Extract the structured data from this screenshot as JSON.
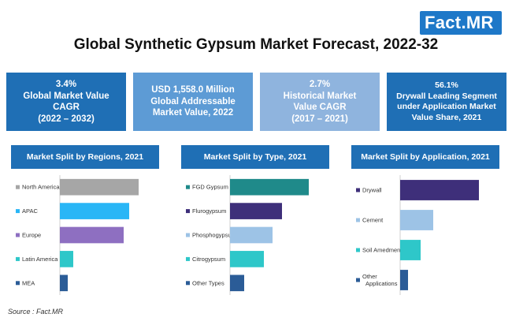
{
  "logo": {
    "text": "Fact",
    "dot": ".",
    "suffix": "MR"
  },
  "title": "Global Synthetic Gypsum Market Forecast, 2022-32",
  "kpis": [
    {
      "lines": [
        "3.4%",
        "Global Market Value",
        "CAGR",
        "(2022 – 2032)"
      ]
    },
    {
      "lines": [
        "USD 1,558.0 Million",
        "Global Addressable",
        "Market Value, 2022"
      ]
    },
    {
      "lines": [
        "2.7%",
        "Historical Market",
        "Value CAGR",
        "(2017 – 2021)"
      ]
    },
    {
      "lines": [
        "56.1%",
        "Drywall Leading Segment",
        "under Application Market",
        "Value Share, 2021"
      ]
    }
  ],
  "source": "Source : Fact.MR",
  "chart_data": [
    {
      "type": "bar",
      "orientation": "horizontal",
      "title": "Market Split by Regions, 2021",
      "categories": [
        "North America",
        "APAC",
        "Europe",
        "Latin America",
        "MEA"
      ],
      "values": [
        100,
        88,
        81,
        17,
        10
      ],
      "colors": [
        "#a6a6a6",
        "#29b6f6",
        "#8e6fc1",
        "#2ec7c9",
        "#2b5c97"
      ]
    },
    {
      "type": "bar",
      "orientation": "horizontal",
      "title": "Market Split by Type, 2021",
      "categories": [
        "FGD Gypsum",
        "Flurogypsum",
        "Phosphogypsum",
        "Citrogypsum",
        "Other Types"
      ],
      "values": [
        100,
        66,
        54,
        43,
        18
      ],
      "colors": [
        "#1f8a8a",
        "#3e2f7a",
        "#9dc3e6",
        "#2ec7c9",
        "#2b5c97"
      ]
    },
    {
      "type": "bar",
      "orientation": "horizontal",
      "title": "Market Split by Application, 2021",
      "categories": [
        "Drywall",
        "Cement",
        "Soil Amedment",
        "Other Applications"
      ],
      "values": [
        100,
        42,
        26,
        10
      ],
      "colors": [
        "#3e2f7a",
        "#9dc3e6",
        "#2ec7c9",
        "#2b5c97"
      ]
    }
  ]
}
